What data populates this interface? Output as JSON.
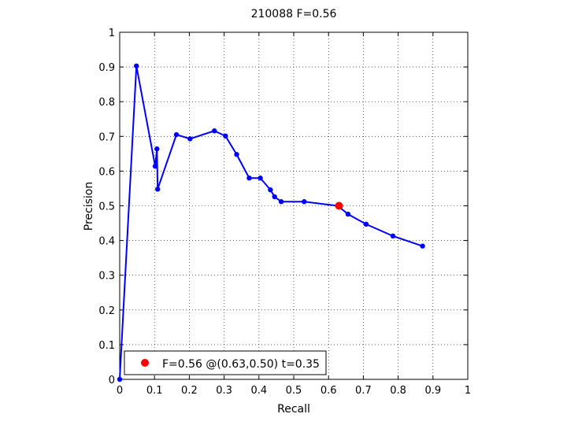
{
  "chart_data": {
    "type": "line",
    "title": "210088 F=0.56",
    "xlabel": "Recall",
    "ylabel": "Precision",
    "xlim": [
      0,
      1
    ],
    "ylim": [
      0,
      1
    ],
    "grid": true,
    "xticks": [
      "0",
      "0.1",
      "0.2",
      "0.3",
      "0.4",
      "0.5",
      "0.6",
      "0.7",
      "0.8",
      "0.9",
      "1"
    ],
    "yticks": [
      "0",
      "0.1",
      "0.2",
      "0.3",
      "0.4",
      "0.5",
      "0.6",
      "0.7",
      "0.8",
      "0.9",
      "1"
    ],
    "series": [
      {
        "color": "#0000ff",
        "points": [
          [
            0.0,
            0.0
          ],
          [
            0.048,
            0.903
          ],
          [
            0.102,
            0.614
          ],
          [
            0.107,
            0.664
          ],
          [
            0.109,
            0.548
          ],
          [
            0.163,
            0.705
          ],
          [
            0.202,
            0.693
          ],
          [
            0.272,
            0.716
          ],
          [
            0.304,
            0.701
          ],
          [
            0.336,
            0.648
          ],
          [
            0.372,
            0.58
          ],
          [
            0.404,
            0.58
          ],
          [
            0.433,
            0.546
          ],
          [
            0.445,
            0.526
          ],
          [
            0.464,
            0.512
          ],
          [
            0.53,
            0.512
          ],
          [
            0.626,
            0.5
          ],
          [
            0.656,
            0.476
          ],
          [
            0.708,
            0.447
          ],
          [
            0.785,
            0.413
          ],
          [
            0.87,
            0.384
          ]
        ]
      }
    ],
    "highlight": {
      "x": 0.63,
      "y": 0.5,
      "color": "#ff0000"
    },
    "legend": {
      "text": "F=0.56 @(0.63,0.50) t=0.35",
      "marker_color": "#ff0000",
      "placement": "bottom-left"
    }
  }
}
